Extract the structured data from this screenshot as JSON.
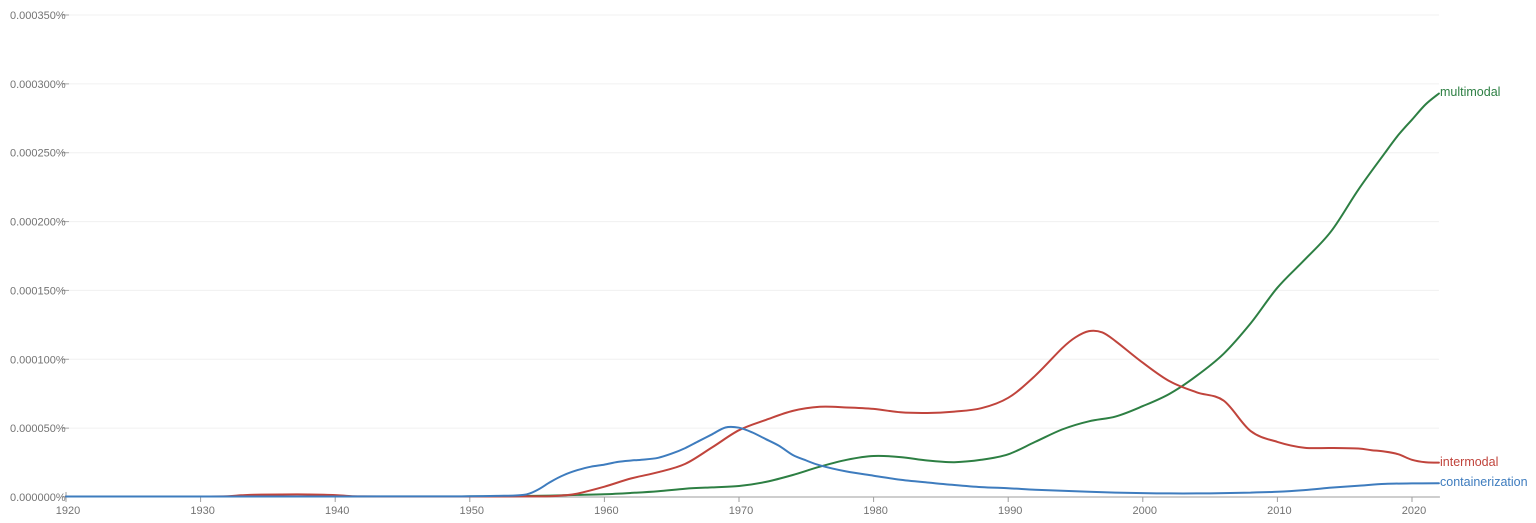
{
  "chart_data": {
    "type": "line",
    "title": "",
    "description": "Ngram-style usage frequency chart of three terms over time",
    "unit": "percent (values stored in millionths of a percent, 1e-6 %)",
    "grid": true,
    "legend_position": "line-end-labels-right",
    "x_domain": [
      1920,
      2022
    ],
    "ylim_micro_percent": [
      0,
      350
    ],
    "x_ticks": [
      1920,
      1930,
      1940,
      1950,
      1960,
      1970,
      1980,
      1990,
      2000,
      2010,
      2020
    ],
    "y_ticks": [
      {
        "value": 0,
        "label": "0.000000%"
      },
      {
        "value": 50,
        "label": "0.000050%"
      },
      {
        "value": 100,
        "label": "0.000100%"
      },
      {
        "value": 150,
        "label": "0.000150%"
      },
      {
        "value": 200,
        "label": "0.000200%"
      },
      {
        "value": 250,
        "label": "0.000250%"
      },
      {
        "value": 300,
        "label": "0.000300%"
      },
      {
        "value": 350,
        "label": "0.000350%"
      }
    ],
    "colors": {
      "axis": "#9e9e9e",
      "grid": "#f0f0f0",
      "tick_text": "#737373"
    },
    "series": [
      {
        "name": "multimodal",
        "color": "#2d7f43",
        "points": [
          [
            1920,
            0.2
          ],
          [
            1926,
            0.2
          ],
          [
            1932,
            0.22
          ],
          [
            1938,
            0.25
          ],
          [
            1944,
            0.3
          ],
          [
            1948,
            0.35
          ],
          [
            1950,
            0.4
          ],
          [
            1952,
            0.5
          ],
          [
            1954,
            0.7
          ],
          [
            1956,
            1.0
          ],
          [
            1958,
            1.5
          ],
          [
            1960,
            2.0
          ],
          [
            1962,
            3.0
          ],
          [
            1964,
            4.2
          ],
          [
            1966,
            6.0
          ],
          [
            1968,
            7.0
          ],
          [
            1970,
            8.0
          ],
          [
            1972,
            11
          ],
          [
            1974,
            16
          ],
          [
            1976,
            22
          ],
          [
            1978,
            27
          ],
          [
            1980,
            29.8
          ],
          [
            1982,
            29
          ],
          [
            1984,
            26.5
          ],
          [
            1986,
            25.3
          ],
          [
            1988,
            27
          ],
          [
            1990,
            31
          ],
          [
            1992,
            40
          ],
          [
            1994,
            49
          ],
          [
            1996,
            55
          ],
          [
            1998,
            58.5
          ],
          [
            2000,
            66
          ],
          [
            2002,
            75
          ],
          [
            2004,
            88
          ],
          [
            2006,
            104
          ],
          [
            2008,
            126
          ],
          [
            2010,
            152
          ],
          [
            2012,
            172
          ],
          [
            2014,
            193
          ],
          [
            2016,
            223
          ],
          [
            2018,
            250
          ],
          [
            2019,
            263
          ],
          [
            2020,
            274
          ],
          [
            2021,
            285
          ],
          [
            2022,
            293
          ]
        ]
      },
      {
        "name": "intermodal",
        "color": "#c0443c",
        "points": [
          [
            1920,
            0.3
          ],
          [
            1926,
            0.3
          ],
          [
            1930,
            0.35
          ],
          [
            1932,
            0.5
          ],
          [
            1933,
            1.2
          ],
          [
            1934,
            1.7
          ],
          [
            1936,
            1.85
          ],
          [
            1938,
            1.85
          ],
          [
            1940,
            1.4
          ],
          [
            1941,
            0.7
          ],
          [
            1942,
            0.45
          ],
          [
            1946,
            0.35
          ],
          [
            1950,
            0.35
          ],
          [
            1954,
            0.4
          ],
          [
            1956,
            0.6
          ],
          [
            1957,
            1.2
          ],
          [
            1958,
            2.5
          ],
          [
            1960,
            7.5
          ],
          [
            1962,
            13.5
          ],
          [
            1964,
            18
          ],
          [
            1966,
            24
          ],
          [
            1968,
            36
          ],
          [
            1970,
            48.5
          ],
          [
            1972,
            56
          ],
          [
            1974,
            62.5
          ],
          [
            1976,
            65.5
          ],
          [
            1978,
            65
          ],
          [
            1980,
            64
          ],
          [
            1982,
            61.5
          ],
          [
            1984,
            61
          ],
          [
            1986,
            62
          ],
          [
            1988,
            64.5
          ],
          [
            1990,
            72
          ],
          [
            1992,
            88
          ],
          [
            1994,
            108
          ],
          [
            1995,
            116
          ],
          [
            1996,
            120.5
          ],
          [
            1997,
            119.5
          ],
          [
            1998,
            113
          ],
          [
            2000,
            97.5
          ],
          [
            2002,
            84
          ],
          [
            2004,
            76
          ],
          [
            2006,
            70
          ],
          [
            2008,
            48
          ],
          [
            2010,
            40
          ],
          [
            2012,
            35.8
          ],
          [
            2014,
            35.6
          ],
          [
            2016,
            35.2
          ],
          [
            2017,
            34
          ],
          [
            2018,
            33
          ],
          [
            2019,
            31
          ],
          [
            2020,
            27
          ],
          [
            2021,
            25.2
          ],
          [
            2022,
            25
          ]
        ]
      },
      {
        "name": "containerization",
        "color": "#3e7cbe",
        "points": [
          [
            1920,
            0.25
          ],
          [
            1926,
            0.3
          ],
          [
            1932,
            0.3
          ],
          [
            1938,
            0.35
          ],
          [
            1944,
            0.4
          ],
          [
            1948,
            0.45
          ],
          [
            1950,
            0.5
          ],
          [
            1952,
            0.8
          ],
          [
            1954,
            1.5
          ],
          [
            1955,
            5
          ],
          [
            1956,
            11
          ],
          [
            1957,
            16
          ],
          [
            1958,
            19.5
          ],
          [
            1959,
            22
          ],
          [
            1960,
            23.5
          ],
          [
            1961,
            25.5
          ],
          [
            1962,
            26.5
          ],
          [
            1963,
            27.2
          ],
          [
            1964,
            28.5
          ],
          [
            1965,
            31.5
          ],
          [
            1966,
            35.5
          ],
          [
            1967,
            40.5
          ],
          [
            1968,
            45.5
          ],
          [
            1969,
            50.5
          ],
          [
            1970,
            50.3
          ],
          [
            1971,
            46.8
          ],
          [
            1972,
            42
          ],
          [
            1973,
            37
          ],
          [
            1974,
            30.5
          ],
          [
            1975,
            26.5
          ],
          [
            1976,
            23
          ],
          [
            1978,
            18.5
          ],
          [
            1980,
            15.5
          ],
          [
            1982,
            12.5
          ],
          [
            1984,
            10.5
          ],
          [
            1986,
            8.7
          ],
          [
            1988,
            7.2
          ],
          [
            1990,
            6.4
          ],
          [
            1992,
            5.3
          ],
          [
            1994,
            4.5
          ],
          [
            1996,
            3.8
          ],
          [
            1998,
            3.2
          ],
          [
            2000,
            2.8
          ],
          [
            2002,
            2.6
          ],
          [
            2004,
            2.6
          ],
          [
            2006,
            2.8
          ],
          [
            2008,
            3.2
          ],
          [
            2010,
            3.8
          ],
          [
            2012,
            5
          ],
          [
            2014,
            6.8
          ],
          [
            2016,
            8.2
          ],
          [
            2018,
            9.5
          ],
          [
            2020,
            9.9
          ],
          [
            2022,
            10
          ]
        ]
      }
    ]
  }
}
